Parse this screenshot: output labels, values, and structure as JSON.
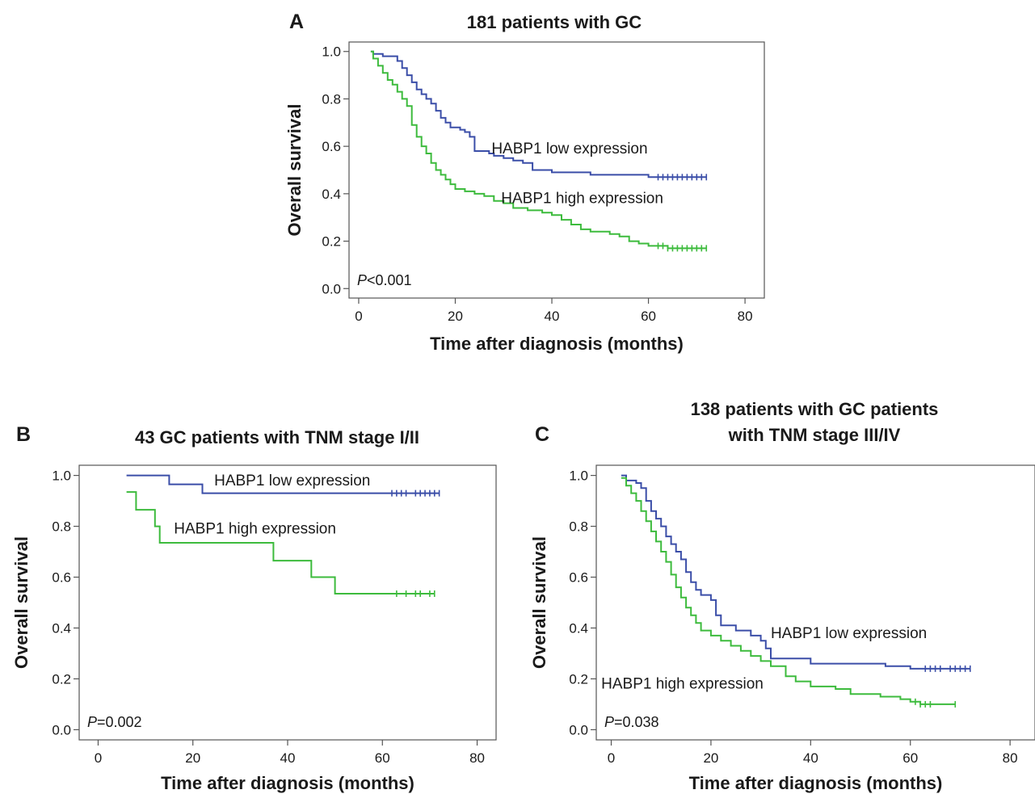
{
  "colors": {
    "low": "#3b4ea8",
    "high": "#3dbb3d",
    "axis": "#555555"
  },
  "chart_data": [
    {
      "type": "line",
      "panel_label": "A",
      "title": [
        "181 patients with GC"
      ],
      "xlabel": "Time after diagnosis (months)",
      "ylabel": "Overall survival",
      "xlim": [
        -2,
        84
      ],
      "ylim": [
        -0.04,
        1.04
      ],
      "xticks": [
        0,
        20,
        40,
        60,
        80
      ],
      "yticks": [
        0.0,
        0.2,
        0.4,
        0.6,
        0.8,
        1.0
      ],
      "p_prefix": "P",
      "p_value": "<0.001",
      "series": [
        {
          "name": "HABP1 low expression",
          "color_key": "low",
          "steps": [
            [
              2.5,
              1.0
            ],
            [
              3,
              0.99
            ],
            [
              5,
              0.98
            ],
            [
              8,
              0.96
            ],
            [
              9,
              0.93
            ],
            [
              10,
              0.9
            ],
            [
              11,
              0.87
            ],
            [
              12,
              0.84
            ],
            [
              13,
              0.82
            ],
            [
              14,
              0.8
            ],
            [
              15,
              0.78
            ],
            [
              16,
              0.75
            ],
            [
              17,
              0.72
            ],
            [
              18,
              0.7
            ],
            [
              19,
              0.68
            ],
            [
              21,
              0.67
            ],
            [
              22,
              0.66
            ],
            [
              23,
              0.64
            ],
            [
              24,
              0.58
            ],
            [
              27,
              0.57
            ],
            [
              28,
              0.56
            ],
            [
              30,
              0.55
            ],
            [
              32,
              0.54
            ],
            [
              34,
              0.53
            ],
            [
              36,
              0.5
            ],
            [
              40,
              0.49
            ],
            [
              45,
              0.49
            ],
            [
              48,
              0.48
            ],
            [
              55,
              0.48
            ],
            [
              60,
              0.47
            ],
            [
              72,
              0.47
            ]
          ],
          "censors": [
            62,
            63,
            64,
            65,
            66,
            67,
            68,
            69,
            70,
            71,
            72
          ],
          "label_at": [
            27.5,
            0.59
          ],
          "label_anchor": "start"
        },
        {
          "name": "HABP1 high expression",
          "color_key": "high",
          "steps": [
            [
              2.5,
              1.0
            ],
            [
              3,
              0.97
            ],
            [
              4,
              0.94
            ],
            [
              5,
              0.91
            ],
            [
              6,
              0.88
            ],
            [
              7,
              0.86
            ],
            [
              8,
              0.83
            ],
            [
              9,
              0.8
            ],
            [
              10,
              0.77
            ],
            [
              11,
              0.69
            ],
            [
              12,
              0.64
            ],
            [
              13,
              0.6
            ],
            [
              14,
              0.57
            ],
            [
              15,
              0.53
            ],
            [
              16,
              0.5
            ],
            [
              17,
              0.48
            ],
            [
              18,
              0.46
            ],
            [
              19,
              0.44
            ],
            [
              20,
              0.42
            ],
            [
              22,
              0.41
            ],
            [
              24,
              0.4
            ],
            [
              26,
              0.39
            ],
            [
              28,
              0.37
            ],
            [
              30,
              0.36
            ],
            [
              32,
              0.34
            ],
            [
              35,
              0.33
            ],
            [
              38,
              0.32
            ],
            [
              40,
              0.31
            ],
            [
              42,
              0.29
            ],
            [
              44,
              0.27
            ],
            [
              46,
              0.25
            ],
            [
              48,
              0.24
            ],
            [
              52,
              0.23
            ],
            [
              54,
              0.22
            ],
            [
              56,
              0.2
            ],
            [
              58,
              0.19
            ],
            [
              60,
              0.18
            ],
            [
              64,
              0.17
            ],
            [
              72,
              0.17
            ]
          ],
          "censors": [
            62,
            63,
            64,
            65,
            66,
            67,
            68,
            69,
            70,
            71,
            72
          ],
          "label_at": [
            29.5,
            0.38
          ],
          "label_anchor": "start"
        }
      ]
    },
    {
      "type": "line",
      "panel_label": "B",
      "title": [
        "43 GC patients with TNM stage I/II"
      ],
      "xlabel": "Time after diagnosis (months)",
      "ylabel": "Overall survival",
      "xlim": [
        -4,
        84
      ],
      "ylim": [
        -0.04,
        1.04
      ],
      "xticks": [
        0,
        20,
        40,
        60,
        80
      ],
      "yticks": [
        0.0,
        0.2,
        0.4,
        0.6,
        0.8,
        1.0
      ],
      "p_prefix": "P",
      "p_value": "=0.002",
      "series": [
        {
          "name": "HABP1 low expression",
          "color_key": "low",
          "steps": [
            [
              6,
              1.0
            ],
            [
              15,
              0.965
            ],
            [
              22,
              0.93
            ],
            [
              72,
              0.93
            ]
          ],
          "censors": [
            62,
            63,
            64,
            65,
            67,
            68,
            69,
            70,
            71,
            72
          ],
          "label_at": [
            24.5,
            0.98
          ],
          "label_anchor": "start"
        },
        {
          "name": "HABP1 high expression",
          "color_key": "high",
          "steps": [
            [
              6,
              0.935
            ],
            [
              8,
              0.865
            ],
            [
              12,
              0.8
            ],
            [
              13,
              0.735
            ],
            [
              37,
              0.665
            ],
            [
              45,
              0.6
            ],
            [
              50,
              0.535
            ],
            [
              71,
              0.535
            ]
          ],
          "censors": [
            63,
            65,
            67,
            68,
            70,
            71
          ],
          "label_at": [
            16,
            0.79
          ],
          "label_anchor": "start"
        }
      ]
    },
    {
      "type": "line",
      "panel_label": "C",
      "title": [
        "138 patients with GC patients",
        "with TNM stage III/IV"
      ],
      "xlabel": "Time after diagnosis (months)",
      "ylabel": "Overall survival",
      "xlim": [
        -3,
        85
      ],
      "ylim": [
        -0.04,
        1.04
      ],
      "xticks": [
        0,
        20,
        40,
        60,
        80
      ],
      "yticks": [
        0.0,
        0.2,
        0.4,
        0.6,
        0.8,
        1.0
      ],
      "p_prefix": "P",
      "p_value": "=0.038",
      "series": [
        {
          "name": "HABP1 low expression",
          "color_key": "low",
          "steps": [
            [
              2,
              1.0
            ],
            [
              3,
              0.98
            ],
            [
              5,
              0.97
            ],
            [
              6,
              0.95
            ],
            [
              7,
              0.9
            ],
            [
              8,
              0.86
            ],
            [
              9,
              0.83
            ],
            [
              10,
              0.8
            ],
            [
              11,
              0.76
            ],
            [
              12,
              0.73
            ],
            [
              13,
              0.7
            ],
            [
              14,
              0.67
            ],
            [
              15,
              0.62
            ],
            [
              16,
              0.58
            ],
            [
              17,
              0.55
            ],
            [
              18,
              0.53
            ],
            [
              20,
              0.51
            ],
            [
              21,
              0.45
            ],
            [
              22,
              0.41
            ],
            [
              25,
              0.39
            ],
            [
              28,
              0.37
            ],
            [
              30,
              0.35
            ],
            [
              31,
              0.32
            ],
            [
              32,
              0.28
            ],
            [
              40,
              0.26
            ],
            [
              55,
              0.25
            ],
            [
              60,
              0.24
            ],
            [
              72,
              0.24
            ]
          ],
          "censors": [
            63,
            64,
            65,
            66,
            68,
            69,
            70,
            71,
            72
          ],
          "label_at": [
            32,
            0.38
          ],
          "label_anchor": "start"
        },
        {
          "name": "HABP1 high expression",
          "color_key": "high",
          "steps": [
            [
              2,
              0.99
            ],
            [
              3,
              0.96
            ],
            [
              4,
              0.93
            ],
            [
              5,
              0.9
            ],
            [
              6,
              0.86
            ],
            [
              7,
              0.82
            ],
            [
              8,
              0.78
            ],
            [
              9,
              0.74
            ],
            [
              10,
              0.7
            ],
            [
              11,
              0.66
            ],
            [
              12,
              0.61
            ],
            [
              13,
              0.56
            ],
            [
              14,
              0.52
            ],
            [
              15,
              0.48
            ],
            [
              16,
              0.45
            ],
            [
              17,
              0.42
            ],
            [
              18,
              0.39
            ],
            [
              20,
              0.37
            ],
            [
              22,
              0.35
            ],
            [
              24,
              0.33
            ],
            [
              26,
              0.31
            ],
            [
              28,
              0.29
            ],
            [
              30,
              0.27
            ],
            [
              32,
              0.25
            ],
            [
              35,
              0.21
            ],
            [
              37,
              0.19
            ],
            [
              40,
              0.17
            ],
            [
              45,
              0.16
            ],
            [
              48,
              0.14
            ],
            [
              54,
              0.13
            ],
            [
              58,
              0.12
            ],
            [
              60,
              0.11
            ],
            [
              62,
              0.1
            ],
            [
              69,
              0.1
            ]
          ],
          "censors": [
            61,
            62,
            63,
            64,
            69
          ],
          "label_at": [
            -2,
            0.18
          ],
          "label_anchor": "start"
        }
      ]
    }
  ]
}
